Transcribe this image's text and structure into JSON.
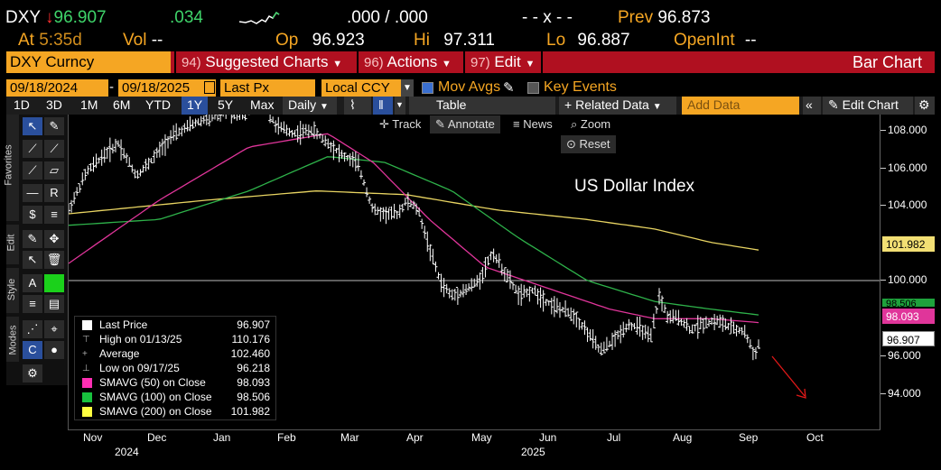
{
  "header": {
    "ticker": "DXY",
    "arrow": "↓",
    "last": "96.907",
    "change": ".034",
    "bid_ask": ".000 / .000",
    "x_mark": "- - x - -",
    "prev_label": "Prev",
    "prev_value": "96.873",
    "at_label": "At",
    "at_time": "5:35d",
    "vol_label": "Vol",
    "vol_value": "--",
    "op_label": "Op",
    "op_value": "96.923",
    "hi_label": "Hi",
    "hi_value": "97.311",
    "lo_label": "Lo",
    "lo_value": "96.887",
    "oi_label": "OpenInt",
    "oi_value": "--"
  },
  "command_bar": {
    "security": "DXY Curncy",
    "suggested_num": "94)",
    "suggested_label": "Suggested Charts",
    "actions_num": "96)",
    "actions_label": "Actions",
    "edit_num": "97)",
    "edit_label": "Edit",
    "right_label": "Bar Chart"
  },
  "controls": {
    "start_date": "09/18/2024",
    "dash": "-",
    "end_date": "09/18/2025",
    "price_field": "Last Px",
    "currency": "Local CCY",
    "mov_avgs": "Mov Avgs",
    "key_events": "Key Events"
  },
  "toolbar": {
    "periods": [
      "1D",
      "3D",
      "1M",
      "6M",
      "YTD",
      "1Y",
      "5Y",
      "Max"
    ],
    "selected_period": "1Y",
    "frequency": "Daily",
    "table": "Table",
    "related": "Related Data",
    "add_data_placeholder": "Add Data",
    "edit_chart": "Edit Chart"
  },
  "chart_buttons": {
    "track": "Track",
    "annotate": "Annotate",
    "news": "News",
    "zoom": "Zoom",
    "reset": "Reset"
  },
  "palette_labels": {
    "favorites": "Favorites",
    "edit": "Edit",
    "style": "Style",
    "modes": "Modes"
  },
  "chart_data": {
    "type": "bar",
    "title": "US Dollar Index",
    "x_months": [
      "Nov",
      "Dec",
      "Jan",
      "Feb",
      "Mar",
      "Apr",
      "May",
      "Jun",
      "Jul",
      "Aug",
      "Sep",
      "Oct"
    ],
    "x_years": [
      "2024",
      "2025"
    ],
    "ylim": [
      92.5,
      109
    ],
    "y_ticks": [
      "108.000",
      "106.000",
      "104.000",
      "100.000",
      "96.000",
      "94.000"
    ],
    "series_price": {
      "name": "Last Price",
      "points": [
        [
          0,
          104.0
        ],
        [
          8,
          106.0
        ],
        [
          15,
          106.8
        ],
        [
          22,
          107.5
        ],
        [
          30,
          105.8
        ],
        [
          36,
          106.5
        ],
        [
          45,
          107.8
        ],
        [
          55,
          108.5
        ],
        [
          62,
          108.8
        ],
        [
          70,
          109.2
        ],
        [
          78,
          109.0
        ],
        [
          85,
          109.9
        ],
        [
          92,
          108.4
        ],
        [
          100,
          108.0
        ],
        [
          108,
          108.2
        ],
        [
          115,
          107.5
        ],
        [
          122,
          106.8
        ],
        [
          128,
          106.5
        ],
        [
          135,
          104.0
        ],
        [
          140,
          103.8
        ],
        [
          146,
          103.8
        ],
        [
          150,
          104.5
        ],
        [
          155,
          104.0
        ],
        [
          160,
          102.0
        ],
        [
          165,
          100.2
        ],
        [
          170,
          99.5
        ],
        [
          176,
          99.8
        ],
        [
          182,
          100.3
        ],
        [
          188,
          101.8
        ],
        [
          194,
          100.6
        ],
        [
          200,
          99.5
        ],
        [
          206,
          99.8
        ],
        [
          212,
          99.2
        ],
        [
          218,
          98.8
        ],
        [
          224,
          98.5
        ],
        [
          230,
          97.6
        ],
        [
          236,
          96.6
        ],
        [
          242,
          97.2
        ],
        [
          248,
          98.0
        ],
        [
          254,
          97.8
        ],
        [
          258,
          97.2
        ],
        [
          262,
          99.5
        ],
        [
          266,
          98.3
        ],
        [
          270,
          98.4
        ],
        [
          276,
          97.7
        ],
        [
          282,
          98.1
        ],
        [
          288,
          98.2
        ],
        [
          294,
          97.8
        ],
        [
          300,
          97.6
        ],
        [
          304,
          96.4
        ],
        [
          306,
          96.9
        ]
      ]
    },
    "series_ma50": {
      "name": "SMAVG (50) on Close",
      "points": [
        [
          0,
          101.2
        ],
        [
          40,
          104.5
        ],
        [
          80,
          107.3
        ],
        [
          115,
          108.0
        ],
        [
          135,
          106.5
        ],
        [
          160,
          103.5
        ],
        [
          185,
          101.0
        ],
        [
          215,
          99.8
        ],
        [
          240,
          98.8
        ],
        [
          260,
          98.3
        ],
        [
          285,
          98.3
        ],
        [
          306,
          98.1
        ]
      ]
    },
    "series_ma100": {
      "name": "SMAVG (100) on Close",
      "points": [
        [
          0,
          103.2
        ],
        [
          40,
          103.5
        ],
        [
          80,
          105.0
        ],
        [
          115,
          106.8
        ],
        [
          140,
          106.5
        ],
        [
          170,
          105.0
        ],
        [
          200,
          102.5
        ],
        [
          230,
          100.3
        ],
        [
          260,
          99.2
        ],
        [
          285,
          98.8
        ],
        [
          306,
          98.5
        ]
      ]
    },
    "series_ma200": {
      "name": "SMAVG (200) on Close",
      "points": [
        [
          0,
          103.8
        ],
        [
          60,
          104.5
        ],
        [
          110,
          105.0
        ],
        [
          150,
          104.8
        ],
        [
          190,
          104.0
        ],
        [
          230,
          103.5
        ],
        [
          260,
          103.0
        ],
        [
          285,
          102.3
        ],
        [
          306,
          101.9
        ]
      ]
    },
    "reference_line": 100.3,
    "arrow_label": "",
    "legend": [
      {
        "swatch": "#ffffff",
        "label": "Last Price",
        "value": "96.907"
      },
      {
        "swatch": "",
        "label": "High on 01/13/25",
        "value": "110.176"
      },
      {
        "swatch": "",
        "label": "Average",
        "value": "102.460"
      },
      {
        "swatch": "",
        "label": "Low on 09/17/25",
        "value": "96.218"
      },
      {
        "swatch": "#ff2fb4",
        "label": "SMAVG (50)  on Close",
        "value": "98.093"
      },
      {
        "swatch": "#18c23e",
        "label": "SMAVG (100)  on Close",
        "value": "98.506"
      },
      {
        "swatch": "#ffff40",
        "label": "SMAVG (200)  on Close",
        "value": "101.982"
      }
    ],
    "badges": {
      "ma200": "101.982",
      "ma100": "98.506",
      "ma50": "98.093",
      "last": "96.907"
    }
  },
  "colors": {
    "ma50": "#e0359a",
    "ma100": "#2eb24a",
    "ma200": "#e8d462",
    "price": "#ffffff",
    "orange": "#f5a623",
    "command_red": "#b01020"
  }
}
